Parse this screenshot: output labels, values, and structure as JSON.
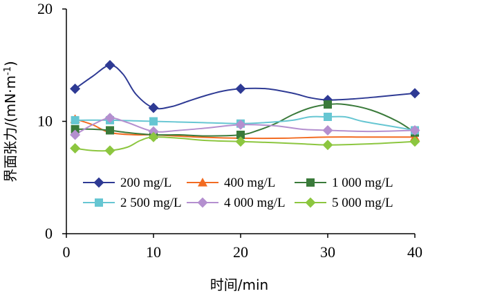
{
  "chart_data": {
    "type": "line",
    "xlabel": "时间/min",
    "ylabel_main": "界面张力/(mN·m",
    "ylabel_sup": "-1",
    "ylabel_close": ")",
    "xlim": [
      0,
      40
    ],
    "ylim": [
      0,
      20
    ],
    "x_ticks": [
      0,
      10,
      20,
      30,
      40
    ],
    "y_ticks": [
      0,
      10,
      20
    ],
    "grid": false,
    "legend_position": "inside-lower",
    "series": [
      {
        "name": "200 mg/L",
        "color": "#2E3A94",
        "marker": "diamond",
        "markers": [
          [
            1,
            12.9
          ],
          [
            5,
            15.0
          ],
          [
            10,
            11.2
          ],
          [
            20,
            12.9
          ],
          [
            30,
            11.9
          ],
          [
            40,
            12.5
          ]
        ],
        "curve": [
          [
            1,
            12.9
          ],
          [
            3,
            14.0
          ],
          [
            5,
            15.0
          ],
          [
            6.5,
            14.2
          ],
          [
            8,
            12.4
          ],
          [
            10,
            11.2
          ],
          [
            12,
            11.3
          ],
          [
            14,
            11.8
          ],
          [
            16,
            12.3
          ],
          [
            18,
            12.7
          ],
          [
            20,
            12.9
          ],
          [
            23,
            12.9
          ],
          [
            26,
            12.5
          ],
          [
            28,
            12.1
          ],
          [
            30,
            11.9
          ],
          [
            33,
            12.0
          ],
          [
            36,
            12.2
          ],
          [
            40,
            12.5
          ]
        ]
      },
      {
        "name": "400 mg/L",
        "color": "#F26B21",
        "marker": "triangle",
        "markers": [
          [
            1,
            10.2
          ],
          [
            40,
            8.6
          ]
        ],
        "curve": [
          [
            1,
            10.2
          ],
          [
            3,
            9.7
          ],
          [
            5,
            9.0
          ],
          [
            8,
            8.8
          ],
          [
            10,
            8.8
          ],
          [
            15,
            8.6
          ],
          [
            20,
            8.5
          ],
          [
            25,
            8.5
          ],
          [
            30,
            8.6
          ],
          [
            35,
            8.6
          ],
          [
            40,
            8.6
          ]
        ]
      },
      {
        "name": "1 000 mg/L",
        "color": "#3A7A3A",
        "marker": "square",
        "markers": [
          [
            1,
            9.3
          ],
          [
            5,
            9.2
          ],
          [
            10,
            8.8
          ],
          [
            20,
            8.8
          ],
          [
            30,
            11.5
          ],
          [
            40,
            9.0
          ]
        ],
        "curve": [
          [
            1,
            9.3
          ],
          [
            3,
            9.3
          ],
          [
            5,
            9.2
          ],
          [
            7,
            9.0
          ],
          [
            10,
            8.8
          ],
          [
            13,
            8.8
          ],
          [
            16,
            8.7
          ],
          [
            20,
            8.8
          ],
          [
            22,
            9.2
          ],
          [
            24,
            9.8
          ],
          [
            26,
            10.6
          ],
          [
            28,
            11.2
          ],
          [
            30,
            11.5
          ],
          [
            32,
            11.5
          ],
          [
            35,
            11.0
          ],
          [
            38,
            10.0
          ],
          [
            40,
            9.0
          ]
        ]
      },
      {
        "name": "2 500 mg/L",
        "color": "#66C6D2",
        "marker": "square",
        "markers": [
          [
            1,
            10.1
          ],
          [
            5,
            10.1
          ],
          [
            10,
            10.0
          ],
          [
            20,
            9.8
          ],
          [
            30,
            10.4
          ],
          [
            40,
            9.2
          ]
        ],
        "curve": [
          [
            1,
            10.1
          ],
          [
            5,
            10.1
          ],
          [
            10,
            10.0
          ],
          [
            15,
            9.9
          ],
          [
            20,
            9.8
          ],
          [
            23,
            9.9
          ],
          [
            26,
            10.1
          ],
          [
            28,
            10.4
          ],
          [
            30,
            10.4
          ],
          [
            32,
            10.4
          ],
          [
            34,
            10.0
          ],
          [
            37,
            9.6
          ],
          [
            40,
            9.2
          ]
        ]
      },
      {
        "name": "4 000 mg/L",
        "color": "#B48FCF",
        "marker": "diamond",
        "markers": [
          [
            1,
            8.8
          ],
          [
            5,
            10.3
          ],
          [
            10,
            9.1
          ],
          [
            20,
            9.7
          ],
          [
            30,
            9.2
          ],
          [
            40,
            9.2
          ]
        ],
        "curve": [
          [
            1,
            8.8
          ],
          [
            3,
            9.7
          ],
          [
            5,
            10.3
          ],
          [
            7,
            9.9
          ],
          [
            10,
            9.1
          ],
          [
            13,
            9.2
          ],
          [
            16,
            9.4
          ],
          [
            20,
            9.7
          ],
          [
            24,
            9.6
          ],
          [
            27,
            9.3
          ],
          [
            30,
            9.2
          ],
          [
            35,
            9.1
          ],
          [
            40,
            9.2
          ]
        ]
      },
      {
        "name": "5 000 mg/L",
        "color": "#8CC63F",
        "marker": "diamond",
        "markers": [
          [
            1,
            7.6
          ],
          [
            5,
            7.4
          ],
          [
            10,
            8.6
          ],
          [
            20,
            8.2
          ],
          [
            30,
            7.9
          ],
          [
            40,
            8.2
          ]
        ],
        "curve": [
          [
            1,
            7.6
          ],
          [
            3,
            7.4
          ],
          [
            5,
            7.4
          ],
          [
            7,
            7.7
          ],
          [
            8.5,
            8.3
          ],
          [
            10,
            8.6
          ],
          [
            13,
            8.5
          ],
          [
            16,
            8.3
          ],
          [
            20,
            8.2
          ],
          [
            24,
            8.1
          ],
          [
            27,
            8.0
          ],
          [
            30,
            7.9
          ],
          [
            35,
            8.0
          ],
          [
            40,
            8.2
          ]
        ]
      }
    ]
  }
}
